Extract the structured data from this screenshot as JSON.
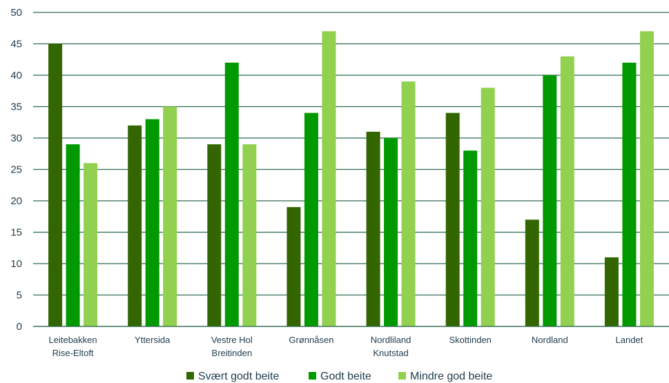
{
  "chart_data": {
    "type": "bar",
    "categories": [
      [
        "Leitebakken",
        "Rise-Eltoft"
      ],
      [
        "Yttersida"
      ],
      [
        "Vestre Hol",
        "Breitinden"
      ],
      [
        "Grønnåsen"
      ],
      [
        "Nordliland",
        "Knutstad"
      ],
      [
        "Skottinden"
      ],
      [
        "Nordland"
      ],
      [
        "Landet"
      ]
    ],
    "series": [
      {
        "name": "Svært godt beite",
        "color": "#336600",
        "values": [
          45,
          32,
          29,
          19,
          31,
          34,
          17,
          11
        ]
      },
      {
        "name": "Godt beite",
        "color": "#009900",
        "values": [
          29,
          33,
          42,
          34,
          30,
          28,
          40,
          42
        ]
      },
      {
        "name": "Mindre god beite",
        "color": "#92d050",
        "values": [
          26,
          35,
          29,
          47,
          39,
          38,
          43,
          47
        ]
      }
    ],
    "ylim": [
      0,
      50
    ],
    "yticks": [
      0,
      5,
      10,
      15,
      20,
      25,
      30,
      35,
      40,
      45,
      50
    ],
    "grid": true,
    "grid_color": "#2e6b4f",
    "legend_position": "bottom-center",
    "title": "",
    "xlabel": "",
    "ylabel": ""
  }
}
